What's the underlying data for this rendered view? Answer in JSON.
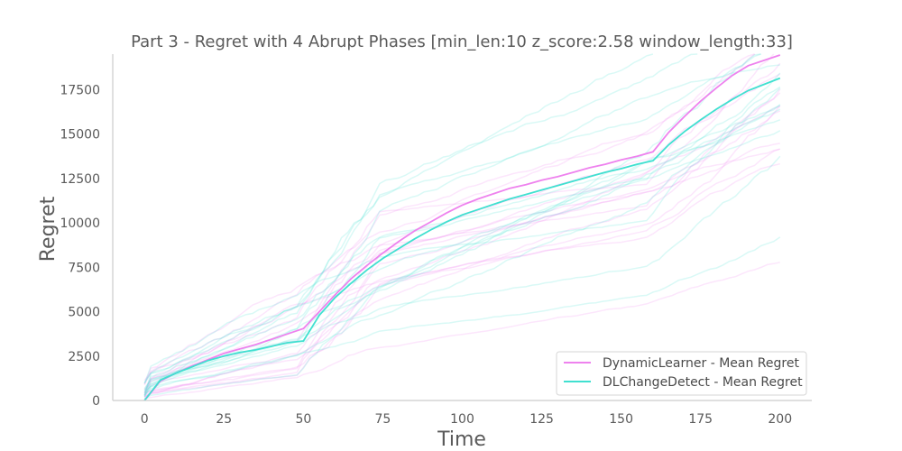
{
  "chart_data": {
    "type": "line",
    "title": "Part 3 - Regret with 4 Abrupt Phases [min_len:10 z_score:2.58 window_length:33]",
    "xlabel": "Time",
    "ylabel": "Regret",
    "xlim": [
      -10,
      210
    ],
    "ylim": [
      0,
      19500
    ],
    "xticks": [
      0,
      25,
      50,
      75,
      100,
      125,
      150,
      175,
      200
    ],
    "yticks": [
      0,
      2500,
      5000,
      7500,
      10000,
      12500,
      15000,
      17500
    ],
    "grid": false,
    "legend_position": "bottom-right",
    "series": [
      {
        "name": "DynamicLearner - Mean Regret",
        "color": "#ee82ee",
        "x": [
          0,
          5,
          10,
          15,
          20,
          25,
          30,
          35,
          40,
          45,
          50,
          55,
          60,
          65,
          70,
          75,
          80,
          85,
          90,
          95,
          100,
          105,
          110,
          115,
          120,
          125,
          130,
          135,
          140,
          145,
          150,
          155,
          160,
          165,
          170,
          175,
          180,
          185,
          190,
          195,
          200
        ],
        "y": [
          0,
          1100,
          1550,
          1950,
          2300,
          2650,
          2900,
          3150,
          3450,
          3750,
          4050,
          5000,
          5950,
          6850,
          7600,
          8300,
          8950,
          9550,
          10050,
          10550,
          11000,
          11350,
          11650,
          11950,
          12150,
          12400,
          12600,
          12850,
          13100,
          13300,
          13550,
          13750,
          14000,
          15100,
          16000,
          16850,
          17600,
          18300,
          18850,
          19150,
          19450
        ]
      },
      {
        "name": "DLChangeDetect - Mean Regret",
        "color": "#40e0d0",
        "x": [
          0,
          5,
          10,
          15,
          20,
          25,
          30,
          35,
          40,
          45,
          50,
          55,
          60,
          65,
          70,
          75,
          80,
          85,
          90,
          95,
          100,
          105,
          110,
          115,
          120,
          125,
          130,
          135,
          140,
          145,
          150,
          155,
          160,
          165,
          170,
          175,
          180,
          185,
          190,
          195,
          200
        ],
        "y": [
          0,
          1150,
          1550,
          1900,
          2250,
          2500,
          2700,
          2850,
          3050,
          3250,
          3350,
          4800,
          5800,
          6600,
          7350,
          8000,
          8550,
          9100,
          9600,
          10050,
          10450,
          10750,
          11050,
          11350,
          11600,
          11850,
          12100,
          12350,
          12600,
          12850,
          13050,
          13300,
          13500,
          14400,
          15150,
          15800,
          16400,
          16950,
          17450,
          17800,
          18150
        ]
      }
    ]
  }
}
